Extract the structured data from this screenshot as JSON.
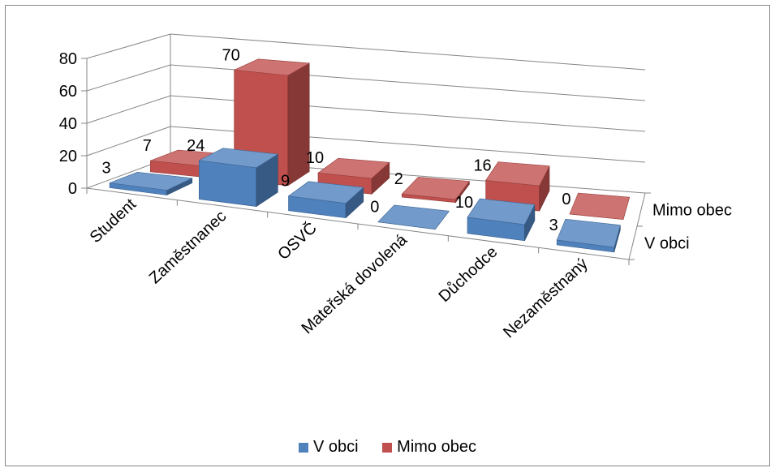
{
  "chart_data": {
    "type": "bar",
    "categories": [
      "Student",
      "Zaměstnanec",
      "OSVČ",
      "Mateřská dovolená",
      "Důchodce",
      "Nezaměstnaný"
    ],
    "series": [
      {
        "name": "V obci",
        "values": [
          3,
          24,
          9,
          0,
          10,
          3
        ],
        "color": "#4F81BD"
      },
      {
        "name": "Mimo obec",
        "values": [
          7,
          70,
          10,
          2,
          16,
          0
        ],
        "color": "#C0504D"
      }
    ],
    "depth_labels": [
      "Mimo obec",
      "V obci"
    ],
    "yticks": [
      0,
      20,
      40,
      60,
      80
    ],
    "ylim": [
      0,
      80
    ],
    "grid": true,
    "legend_position": "bottom"
  }
}
